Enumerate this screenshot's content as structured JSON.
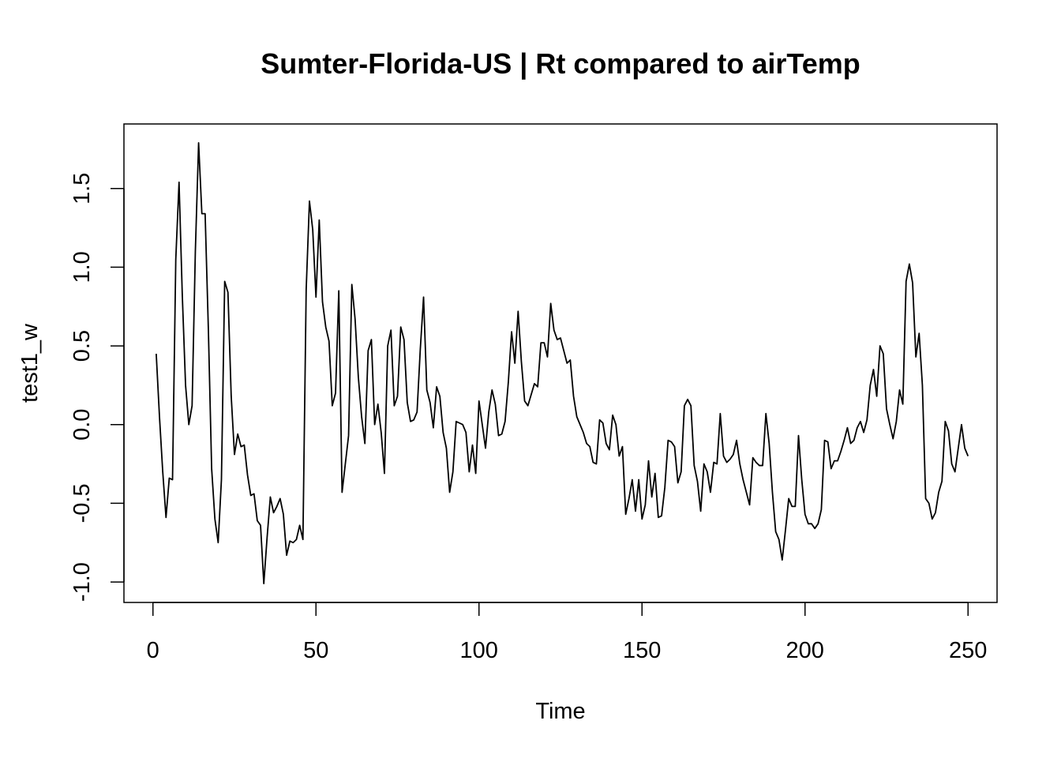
{
  "chart_data": {
    "type": "line",
    "title": "Sumter-Florida-US | Rt compared to airTemp",
    "xlabel": "Time",
    "ylabel": "test1_w",
    "xlim": [
      -8.9,
      258.9
    ],
    "ylim": [
      -1.13,
      1.91
    ],
    "x_ticks": [
      0,
      50,
      100,
      150,
      200,
      250
    ],
    "x_tick_labels": [
      "0",
      "50",
      "100",
      "150",
      "200",
      "250"
    ],
    "y_ticks": [
      -1.0,
      -0.5,
      0.0,
      0.5,
      1.0,
      1.5
    ],
    "y_tick_labels": [
      "-1.0",
      "-0.5",
      "0.0",
      "0.5",
      "1.0",
      "1.5"
    ],
    "grid": false,
    "legend": "none",
    "line_color": "#000000",
    "series": [
      {
        "x_start": 1,
        "values": [
          0.45,
          0.05,
          -0.3,
          -0.59,
          -0.34,
          -0.35,
          1.05,
          1.54,
          0.82,
          0.25,
          0.0,
          0.12,
          1.1,
          1.79,
          1.34,
          1.34,
          0.6,
          -0.28,
          -0.6,
          -0.75,
          -0.35,
          0.91,
          0.84,
          0.18,
          -0.19,
          -0.06,
          -0.14,
          -0.13,
          -0.32,
          -0.45,
          -0.44,
          -0.61,
          -0.64,
          -1.01,
          -0.72,
          -0.46,
          -0.56,
          -0.52,
          -0.47,
          -0.57,
          -0.83,
          -0.74,
          -0.75,
          -0.73,
          -0.64,
          -0.73,
          0.86,
          1.42,
          1.24,
          0.81,
          1.3,
          0.78,
          0.62,
          0.53,
          0.12,
          0.2,
          0.85,
          -0.43,
          -0.25,
          -0.07,
          0.89,
          0.67,
          0.3,
          0.05,
          -0.12,
          0.47,
          0.54,
          0.0,
          0.13,
          -0.05,
          -0.31,
          0.5,
          0.6,
          0.12,
          0.18,
          0.62,
          0.54,
          0.14,
          0.02,
          0.03,
          0.08,
          0.48,
          0.81,
          0.22,
          0.14,
          -0.02,
          0.24,
          0.18,
          -0.05,
          -0.15,
          -0.43,
          -0.3,
          0.02,
          0.01,
          0.0,
          -0.05,
          -0.3,
          -0.13,
          -0.31,
          0.15,
          0.0,
          -0.15,
          0.08,
          0.22,
          0.13,
          -0.07,
          -0.06,
          0.02,
          0.27,
          0.59,
          0.39,
          0.72,
          0.4,
          0.15,
          0.12,
          0.19,
          0.26,
          0.24,
          0.52,
          0.52,
          0.43,
          0.77,
          0.6,
          0.54,
          0.55,
          0.47,
          0.39,
          0.41,
          0.18,
          0.05,
          0.0,
          -0.05,
          -0.12,
          -0.14,
          -0.24,
          -0.25,
          0.03,
          0.01,
          -0.12,
          -0.16,
          0.06,
          0.0,
          -0.2,
          -0.14,
          -0.57,
          -0.47,
          -0.35,
          -0.55,
          -0.35,
          -0.6,
          -0.51,
          -0.23,
          -0.46,
          -0.31,
          -0.59,
          -0.58,
          -0.4,
          -0.1,
          -0.11,
          -0.14,
          -0.37,
          -0.3,
          0.12,
          0.16,
          0.12,
          -0.26,
          -0.36,
          -0.55,
          -0.25,
          -0.3,
          -0.43,
          -0.24,
          -0.25,
          0.07,
          -0.2,
          -0.24,
          -0.22,
          -0.19,
          -0.1,
          -0.25,
          -0.35,
          -0.43,
          -0.51,
          -0.21,
          -0.24,
          -0.26,
          -0.26,
          0.07,
          -0.12,
          -0.43,
          -0.68,
          -0.73,
          -0.86,
          -0.67,
          -0.47,
          -0.52,
          -0.52,
          -0.07,
          -0.35,
          -0.57,
          -0.63,
          -0.63,
          -0.66,
          -0.63,
          -0.54,
          -0.1,
          -0.11,
          -0.28,
          -0.23,
          -0.23,
          -0.17,
          -0.1,
          -0.02,
          -0.12,
          -0.1,
          -0.02,
          0.02,
          -0.05,
          0.03,
          0.25,
          0.35,
          0.18,
          0.5,
          0.45,
          0.1,
          0.0,
          -0.09,
          0.02,
          0.22,
          0.13,
          0.91,
          1.02,
          0.9,
          0.43,
          0.58,
          0.25,
          -0.47,
          -0.5,
          -0.6,
          -0.56,
          -0.43,
          -0.36,
          0.02,
          -0.04,
          -0.25,
          -0.3,
          -0.15,
          0.0,
          -0.15,
          -0.2
        ]
      }
    ]
  }
}
